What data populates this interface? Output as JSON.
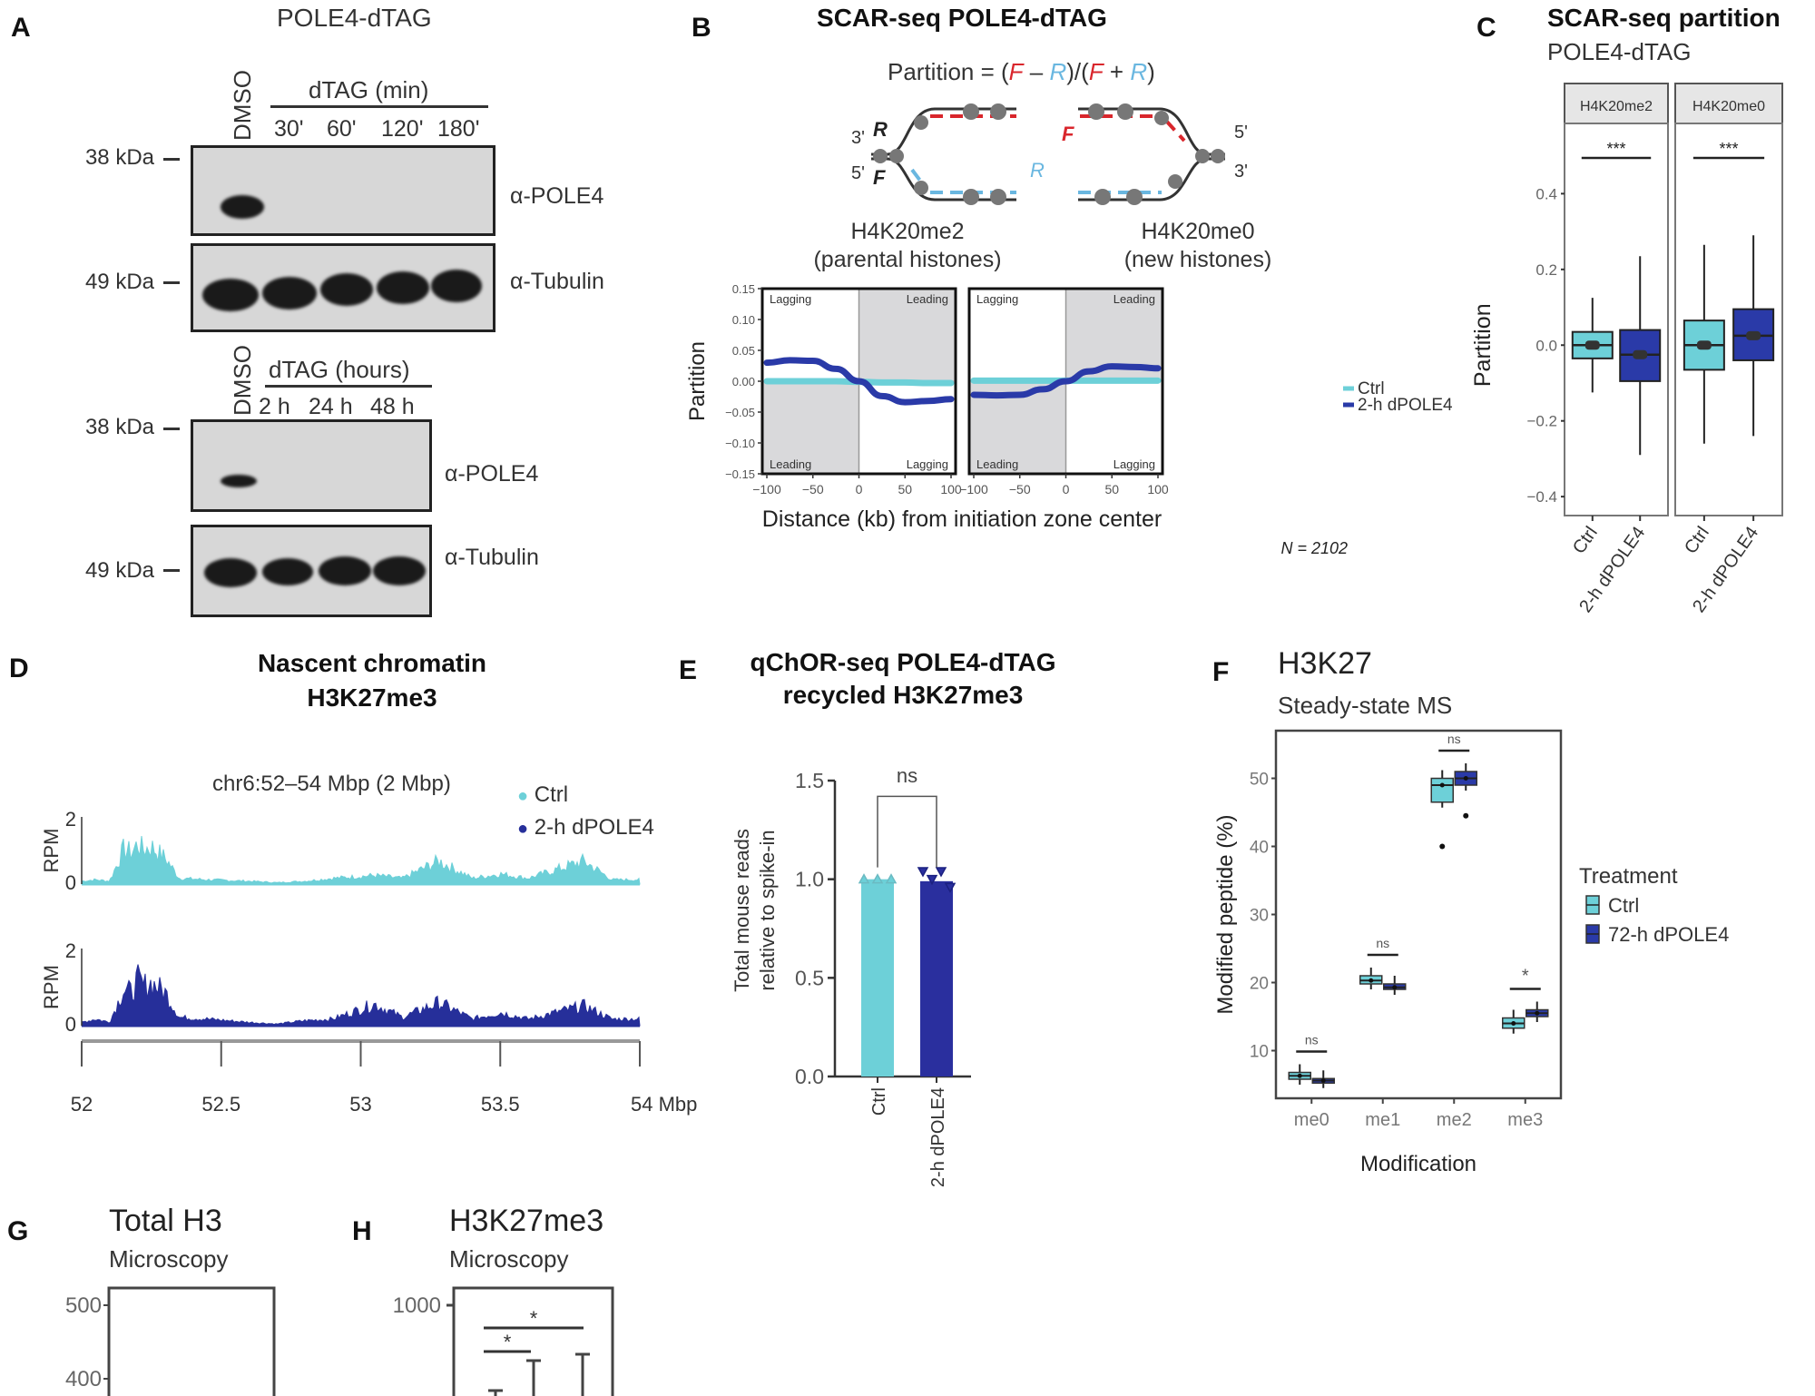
{
  "panels": {
    "A": {
      "label": "A",
      "title": "POLE4-dTAG",
      "blot1": {
        "control_lane": "DMSO",
        "treatment_header": "dTAG (min)",
        "lanes": [
          "30'",
          "60'",
          "120'",
          "180'"
        ],
        "markers": [
          "38 kDa",
          "49 kDa"
        ],
        "antibodies": [
          "α-POLE4",
          "α-Tubulin"
        ]
      },
      "blot2": {
        "control_lane": "DMSO",
        "treatment_header": "dTAG (hours)",
        "lanes": [
          "2 h",
          "24 h",
          "48 h"
        ],
        "markers": [
          "38 kDa",
          "49 kDa"
        ],
        "antibodies": [
          "α-POLE4",
          "α-Tubulin"
        ]
      }
    },
    "B": {
      "label": "B",
      "title": "SCAR-seq POLE4-dTAG",
      "formula": {
        "prefix": "Partition = (",
        "F1": "F",
        "minus": " – ",
        "R1": "R",
        "mid": ")/(",
        "F2": "F",
        "plus": " + ",
        "R2": "R",
        "suffix": ")"
      },
      "diagram": {
        "left_top": "3'",
        "left_bottom": "5'",
        "left_R": "R",
        "left_F": "F",
        "right_top": "5'",
        "right_bottom": "3'",
        "mid_F": "F",
        "mid_R": "R"
      },
      "subplots": [
        {
          "title_line1": "H4K20me2",
          "title_line2": "(parental histones)"
        },
        {
          "title_line1": "H4K20me0",
          "title_line2": "(new histones)"
        }
      ],
      "corner_labels": {
        "tl": "Lagging",
        "tr": "Leading",
        "bl": "Leading",
        "br": "Lagging"
      },
      "legend": [
        {
          "label": "Ctrl",
          "color": "#6dd0d8"
        },
        {
          "label": "2-h dPOLE4",
          "color": "#2a3aa8"
        }
      ],
      "n_label": "N = 2102"
    },
    "C": {
      "label": "C",
      "title": "SCAR-seq partition",
      "subtitle": "POLE4-dTAG",
      "facets": [
        "H4K20me2",
        "H4K20me0"
      ],
      "significance": [
        "***",
        "***"
      ]
    },
    "D": {
      "label": "D",
      "title_line1": "Nascent chromatin",
      "title_line2": "H3K27me3",
      "region": "chr6:52–54 Mbp (2 Mbp)",
      "legend": [
        {
          "label": "Ctrl",
          "color": "#6dd0d8"
        },
        {
          "label": "2-h dPOLE4",
          "color": "#262f9a"
        }
      ],
      "ylabel": "RPM",
      "y_ticks": [
        "2",
        "0"
      ],
      "x_ticks": [
        "52",
        "52.5",
        "53",
        "53.5",
        "54 Mbp"
      ]
    },
    "E": {
      "label": "E",
      "title_line1": "qChOR-seq POLE4-dTAG",
      "title_line2": "recycled H3K27me3",
      "significance": "ns"
    },
    "F": {
      "label": "F",
      "title": "H3K27",
      "subtitle": "Steady-state MS",
      "legend_title": "Treatment",
      "legend": [
        {
          "label": "Ctrl",
          "color": "#6dd0d8"
        },
        {
          "label": "72-h dPOLE4",
          "color": "#2a3aa8"
        }
      ]
    },
    "G": {
      "label": "G",
      "title": "Total H3",
      "subtitle": "Microscopy",
      "y_ticks": [
        "500",
        "400"
      ]
    },
    "H": {
      "label": "H",
      "title": "H3K27me3",
      "subtitle": "Microscopy",
      "y_ticks": [
        "1000"
      ],
      "significance": [
        "*",
        "*"
      ]
    }
  },
  "chart_data": [
    {
      "id": "B",
      "type": "line",
      "title": "SCAR-seq POLE4-dTAG",
      "xlabel": "Distance (kb) from initiation zone center",
      "ylabel": "Partition",
      "xlim": [
        -100,
        100
      ],
      "ylim": [
        -0.15,
        0.15
      ],
      "x_ticks": [
        "-100",
        "-50",
        "0",
        "50",
        "100"
      ],
      "y_ticks": [
        "0.15",
        "0.10",
        "0.05",
        "0.00",
        "-0.05",
        "-0.10",
        "-0.15"
      ],
      "x": [
        -100,
        -75,
        -50,
        -25,
        0,
        25,
        50,
        75,
        100
      ],
      "facets": [
        {
          "name": "H4K20me2",
          "series": [
            {
              "name": "Ctrl",
              "values": [
                0.0,
                0.0,
                0.0,
                0.0,
                -0.001,
                -0.002,
                -0.002,
                -0.003,
                -0.003
              ]
            },
            {
              "name": "2-h dPOLE4",
              "values": [
                0.03,
                0.034,
                0.033,
                0.02,
                0.0,
                -0.024,
                -0.034,
                -0.032,
                -0.029
              ]
            }
          ]
        },
        {
          "name": "H4K20me0",
          "series": [
            {
              "name": "Ctrl",
              "values": [
                0.001,
                0.001,
                0.001,
                0.001,
                0.001,
                0.001,
                0.001,
                0.001,
                0.001
              ]
            },
            {
              "name": "2-h dPOLE4",
              "values": [
                -0.022,
                -0.023,
                -0.022,
                -0.013,
                0.0,
                0.016,
                0.024,
                0.023,
                0.021
              ]
            }
          ]
        }
      ]
    },
    {
      "id": "C",
      "type": "box",
      "title": "SCAR-seq partition",
      "ylabel": "Partition",
      "ylim": [
        -0.45,
        0.48
      ],
      "y_ticks": [
        "0.4",
        "0.2",
        "0.0",
        "-0.2",
        "-0.4"
      ],
      "categories": [
        "Ctrl",
        "2-h dPOLE4"
      ],
      "facets": [
        {
          "name": "H4K20me2",
          "boxes": [
            {
              "group": "Ctrl",
              "min": -0.125,
              "q1": -0.035,
              "median": 0.0,
              "q3": 0.035,
              "max": 0.125
            },
            {
              "group": "2-h dPOLE4",
              "min": -0.29,
              "q1": -0.095,
              "median": -0.025,
              "q3": 0.04,
              "max": 0.235
            }
          ]
        },
        {
          "name": "H4K20me0",
          "boxes": [
            {
              "group": "Ctrl",
              "min": -0.26,
              "q1": -0.065,
              "median": 0.0,
              "q3": 0.065,
              "max": 0.265
            },
            {
              "group": "2-h dPOLE4",
              "min": -0.24,
              "q1": -0.04,
              "median": 0.025,
              "q3": 0.095,
              "max": 0.29
            }
          ]
        }
      ]
    },
    {
      "id": "D",
      "type": "area",
      "title": "Nascent chromatin H3K27me3",
      "xlabel": "Mbp",
      "ylabel": "RPM",
      "xlim": [
        52,
        54
      ],
      "ylim": [
        0,
        2
      ],
      "x": [
        52.0,
        52.05,
        52.1,
        52.15,
        52.18,
        52.2,
        52.22,
        52.25,
        52.3,
        52.35,
        52.45,
        52.6,
        52.7,
        52.8,
        52.9,
        53.05,
        53.15,
        53.28,
        53.4,
        53.5,
        53.6,
        53.8,
        53.9,
        54.0
      ],
      "series": [
        {
          "name": "Ctrl",
          "values": [
            0.1,
            0.15,
            0.1,
            1.2,
            1.1,
            1.4,
            1.2,
            1.3,
            0.9,
            0.2,
            0.15,
            0.1,
            0.05,
            0.1,
            0.2,
            0.3,
            0.2,
            0.8,
            0.2,
            0.35,
            0.2,
            0.8,
            0.15,
            0.15
          ]
        },
        {
          "name": "2-h dPOLE4",
          "values": [
            0.1,
            0.2,
            0.1,
            1.1,
            1.0,
            1.4,
            1.2,
            1.3,
            1.0,
            0.25,
            0.2,
            0.1,
            0.05,
            0.15,
            0.2,
            0.65,
            0.25,
            0.7,
            0.2,
            0.4,
            0.2,
            0.6,
            0.2,
            0.2
          ]
        }
      ]
    },
    {
      "id": "E",
      "type": "bar",
      "title": "qChOR-seq POLE4-dTAG recycled H3K27me3",
      "ylabel": "Total mouse reads relative to spike-in",
      "ylim": [
        0,
        1.5
      ],
      "y_ticks": [
        "0.0",
        "0.5",
        "1.0",
        "1.5"
      ],
      "categories": [
        "Ctrl",
        "2-h dPOLE4"
      ],
      "values": [
        1.0,
        0.99
      ],
      "points": [
        [
          1.0,
          1.0,
          1.0
        ],
        [
          1.04,
          1.0,
          1.04,
          0.96
        ]
      ],
      "annotation": "ns"
    },
    {
      "id": "F",
      "type": "box",
      "title": "H3K27",
      "subtitle": "Steady-state MS",
      "xlabel": "Modification",
      "ylabel": "Modified peptide (%)",
      "ylim": [
        3,
        57
      ],
      "y_ticks": [
        "10",
        "20",
        "30",
        "40",
        "50"
      ],
      "categories": [
        "me0",
        "me1",
        "me2",
        "me3"
      ],
      "series": [
        {
          "name": "Ctrl",
          "boxes": [
            {
              "q1": 5.8,
              "median": 6.3,
              "q3": 6.8
            },
            {
              "q1": 19.8,
              "median": 20.3,
              "q3": 21.0
            },
            {
              "q1": 46.5,
              "median": 49.0,
              "q3": 50.0,
              "outliers": [
                40
              ]
            },
            {
              "q1": 13.3,
              "median": 14.0,
              "q3": 14.8
            }
          ]
        },
        {
          "name": "72-h dPOLE4",
          "boxes": [
            {
              "q1": 5.3,
              "median": 5.6,
              "q3": 5.9
            },
            {
              "q1": 19.0,
              "median": 19.3,
              "q3": 19.8
            },
            {
              "q1": 49.0,
              "median": 50.0,
              "q3": 51.0,
              "outliers": [
                44.5
              ]
            },
            {
              "q1": 15.0,
              "median": 15.5,
              "q3": 16.0
            }
          ]
        }
      ],
      "annotations": [
        "ns",
        "ns",
        "ns",
        "*"
      ]
    }
  ]
}
